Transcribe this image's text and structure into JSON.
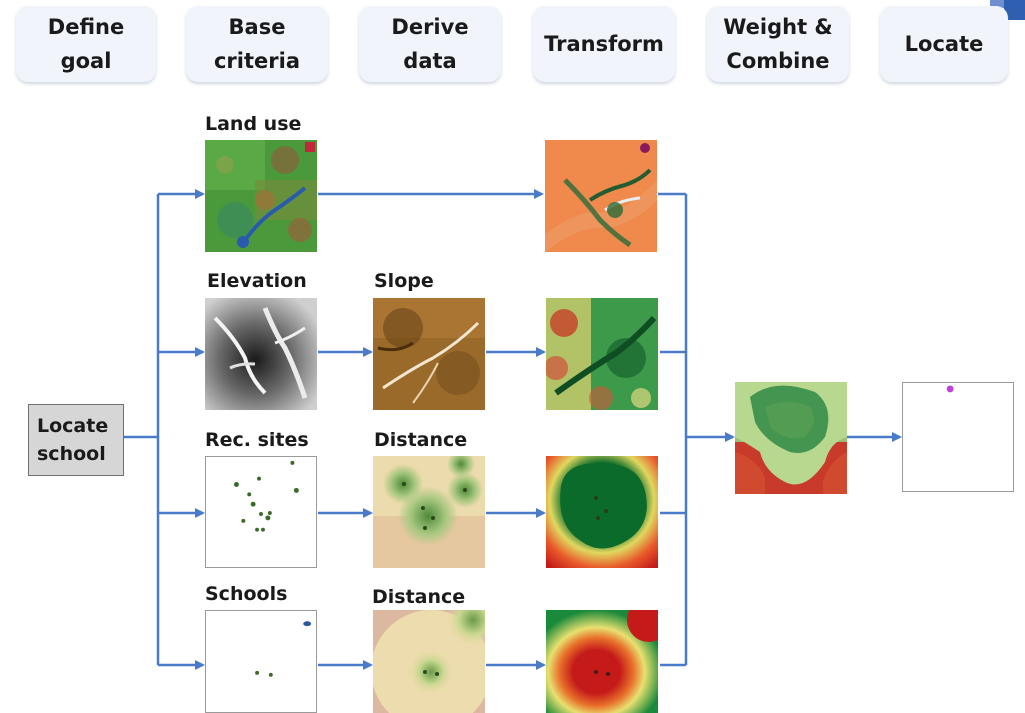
{
  "header": {
    "steps": [
      {
        "label": "Define\ngoal"
      },
      {
        "label": "Base\ncriteria"
      },
      {
        "label": "Derive\ndata"
      },
      {
        "label": "Transform"
      },
      {
        "label": "Weight &\nCombine"
      },
      {
        "label": "Locate"
      }
    ]
  },
  "goal": {
    "label": "Locate\nschool"
  },
  "labels": {
    "land_use": "Land use",
    "elevation": "Elevation",
    "slope": "Slope",
    "rec_sites": "Rec. sites",
    "distance_rec": "Distance",
    "schools": "Schools",
    "distance_schools": "Distance"
  },
  "colors": {
    "arrow": "#4a7bc8",
    "step_bg": "#f1f5fb",
    "goal_bg": "#d6d6d6",
    "suitable": "#0b6b2a",
    "unsuitable": "#c41a1a",
    "result_point": "#c040e0"
  },
  "icons": {
    "land_use": "land-use-raster",
    "elevation": "elevation-raster",
    "slope": "slope-raster",
    "rec_sites": "rec-sites-points",
    "schools": "schools-points",
    "result": "location-point"
  }
}
